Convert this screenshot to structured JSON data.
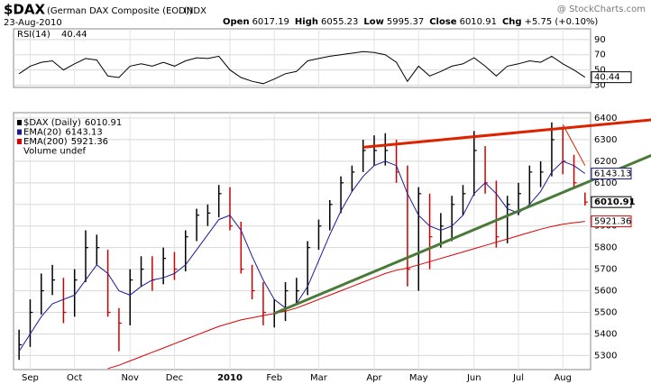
{
  "header": {
    "symbol": "$DAX",
    "name": "(German DAX Composite (EOD))",
    "exchange": "INDX",
    "date": "23-Aug-2010",
    "watermark": "@ StockCharts.com",
    "quote": [
      {
        "label": "Open",
        "value": 6017.19
      },
      {
        "label": "High",
        "value": 6055.23
      },
      {
        "label": "Low",
        "value": 5995.37
      },
      {
        "label": "Close",
        "value": 6010.91
      },
      {
        "label": "Chg",
        "value": "+5.75 (+0.10%)"
      }
    ]
  },
  "chart_data": [
    {
      "type": "line",
      "title": "RSI(14)",
      "ylim": [
        27,
        104
      ],
      "yticks": [
        30,
        50,
        70,
        90
      ],
      "grid": true,
      "series": [
        {
          "name": "RSI(14)",
          "color": "#000000",
          "values": [
            45,
            55,
            60,
            62,
            50,
            58,
            65,
            63,
            42,
            40,
            55,
            58,
            55,
            60,
            55,
            62,
            66,
            65,
            68,
            50,
            40,
            35,
            32,
            38,
            45,
            48,
            62,
            65,
            68,
            70,
            72,
            74,
            73,
            70,
            60,
            35,
            55,
            42,
            48,
            55,
            58,
            66,
            55,
            42,
            55,
            58,
            62,
            60,
            68,
            58,
            50,
            40.44
          ]
        }
      ]
    },
    {
      "type": "ohlc",
      "ylim": [
        5235,
        6425
      ],
      "yticks": [
        5300,
        5400,
        5500,
        5600,
        5700,
        5800,
        5900,
        6000,
        6100,
        6200,
        6300,
        6400
      ],
      "grid": true,
      "categories": [
        null,
        "Sep",
        null,
        null,
        null,
        "Oct",
        null,
        null,
        null,
        null,
        "Nov",
        null,
        null,
        null,
        "Dec",
        null,
        null,
        null,
        null,
        "2010",
        null,
        null,
        null,
        "Feb",
        null,
        null,
        null,
        "Mar",
        null,
        null,
        null,
        null,
        "Apr",
        null,
        null,
        null,
        "May",
        null,
        null,
        null,
        null,
        "Jun",
        null,
        null,
        null,
        "Jul",
        null,
        null,
        null,
        "Aug",
        null,
        null
      ],
      "legend_extra": "Volume undef",
      "series": [
        {
          "name": "$DAX (Daily)",
          "color": "#000000",
          "down_color": "#cc0000",
          "values": [
            5350,
            5500,
            5600,
            5650,
            5500,
            5650,
            5800,
            5800,
            5500,
            5450,
            5650,
            5700,
            5650,
            5750,
            5700,
            5850,
            5950,
            5960,
            6050,
            5900,
            5700,
            5600,
            5500,
            5500,
            5600,
            5600,
            5800,
            5900,
            6000,
            6100,
            6150,
            6250,
            6250,
            6250,
            6150,
            5700,
            6050,
            5850,
            5900,
            6000,
            6050,
            6250,
            6100,
            5850,
            6000,
            6050,
            6150,
            6150,
            6300,
            6200,
            6100,
            6010.91
          ],
          "high": [
            5420,
            5560,
            5680,
            5720,
            5660,
            5700,
            5880,
            5860,
            5790,
            5520,
            5700,
            5760,
            5760,
            5800,
            5780,
            5880,
            5980,
            6000,
            6090,
            6080,
            5920,
            5720,
            5640,
            5560,
            5640,
            5660,
            5830,
            5930,
            6020,
            6130,
            6180,
            6300,
            6320,
            6330,
            6300,
            6180,
            6080,
            6050,
            5960,
            6040,
            6090,
            6340,
            6270,
            6110,
            6040,
            6100,
            6180,
            6200,
            6380,
            6360,
            6230,
            6055.23
          ],
          "low": [
            5280,
            5340,
            5490,
            5580,
            5450,
            5480,
            5640,
            5720,
            5480,
            5320,
            5440,
            5620,
            5600,
            5630,
            5650,
            5690,
            5830,
            5900,
            5940,
            5880,
            5680,
            5560,
            5440,
            5430,
            5460,
            5540,
            5580,
            5790,
            5880,
            5960,
            6060,
            6150,
            6180,
            6180,
            6100,
            5620,
            5600,
            5700,
            5800,
            5830,
            5950,
            6040,
            6050,
            5800,
            5820,
            5950,
            6000,
            6080,
            6130,
            6140,
            6080,
            5995.37
          ]
        },
        {
          "name": "EMA(20)",
          "color": "#1a1a99",
          "values": [
            5320,
            5400,
            5480,
            5540,
            5560,
            5580,
            5650,
            5720,
            5680,
            5600,
            5580,
            5620,
            5650,
            5660,
            5680,
            5720,
            5790,
            5860,
            5930,
            5950,
            5880,
            5760,
            5650,
            5560,
            5520,
            5540,
            5620,
            5740,
            5860,
            5970,
            6060,
            6130,
            6180,
            6200,
            6180,
            6050,
            5950,
            5900,
            5880,
            5900,
            5950,
            6050,
            6100,
            6050,
            5980,
            5960,
            6000,
            6060,
            6150,
            6200,
            6180,
            6143.13
          ]
        },
        {
          "name": "EMA(200)",
          "color": "#dd0000",
          "values": [
            null,
            null,
            null,
            null,
            null,
            null,
            null,
            null,
            5240,
            5255,
            5275,
            5295,
            5315,
            5335,
            5355,
            5375,
            5395,
            5415,
            5435,
            5450,
            5465,
            5475,
            5485,
            5495,
            5505,
            5520,
            5540,
            5560,
            5580,
            5600,
            5620,
            5640,
            5660,
            5680,
            5695,
            5705,
            5720,
            5735,
            5750,
            5765,
            5780,
            5795,
            5810,
            5825,
            5840,
            5855,
            5870,
            5885,
            5898,
            5908,
            5915,
            5921.36
          ]
        }
      ],
      "trendlines": [
        {
          "color": "#dd2200",
          "x0": 31,
          "y0": 6265,
          "x1": 57,
          "y1": 6392
        },
        {
          "color": "#4a7a3a",
          "x0": 23,
          "y0": 5495,
          "x1": 57,
          "y1": 6228
        },
        {
          "color": "#dd2200",
          "x0": 49,
          "y0": 6370,
          "x1": 51,
          "y1": 6180
        }
      ]
    }
  ]
}
